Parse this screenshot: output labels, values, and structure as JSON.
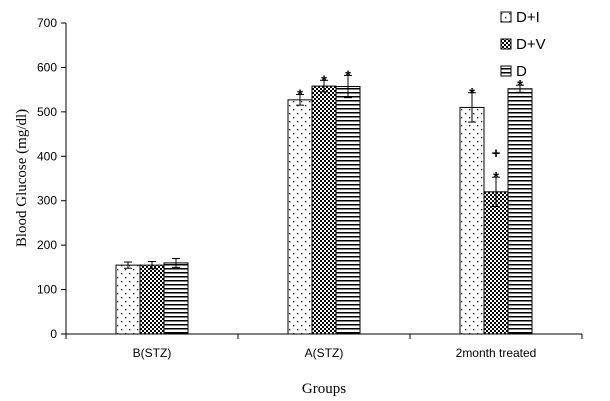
{
  "chart_data": {
    "type": "bar",
    "title": "",
    "xlabel": "Groups",
    "ylabel": "Blood Glucose (mg/dl)",
    "ylim": [
      0,
      700
    ],
    "yticks": [
      "0",
      "100",
      "200",
      "300",
      "400",
      "500",
      "600",
      "700"
    ],
    "categories": [
      "B(STZ)",
      "A(STZ)",
      "2month treated"
    ],
    "legend_position": "top-right",
    "series": [
      {
        "name": "D+I",
        "pattern": "dots",
        "values": [
          155,
          527,
          510
        ],
        "errors": [
          7,
          12,
          33
        ]
      },
      {
        "name": "D+V",
        "pattern": "checker",
        "values": [
          155,
          558,
          320
        ],
        "errors": [
          8,
          13,
          33
        ]
      },
      {
        "name": "D",
        "pattern": "horizontal-lines",
        "values": [
          160,
          557,
          552
        ],
        "errors": [
          10,
          25,
          8
        ]
      }
    ],
    "annotations": [
      {
        "category": "A(STZ)",
        "series": "D+I",
        "text": "*"
      },
      {
        "category": "A(STZ)",
        "series": "D+V",
        "text": "*"
      },
      {
        "category": "A(STZ)",
        "series": "D",
        "text": "*"
      },
      {
        "category": "2month treated",
        "series": "D+I",
        "text": "*"
      },
      {
        "category": "2month treated",
        "series": "D+V",
        "text": "+\n*"
      },
      {
        "category": "2month treated",
        "series": "D",
        "text": "*"
      }
    ]
  }
}
